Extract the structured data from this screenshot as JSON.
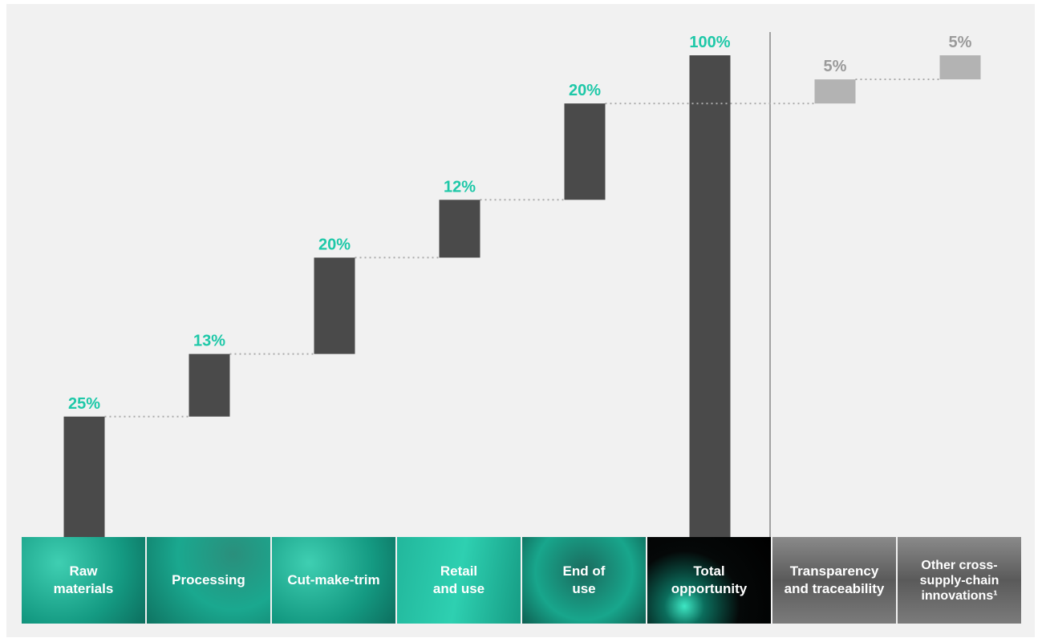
{
  "chart_data": {
    "type": "waterfall",
    "categories": [
      "Raw materials",
      "Processing",
      "Cut-make-trim",
      "Retail and use",
      "End of use",
      "Total opportunity",
      "Transparency and traceability",
      "Other cross-supply-chain innovations¹"
    ],
    "values": [
      25,
      13,
      20,
      12,
      20,
      100,
      5,
      5
    ],
    "value_labels": [
      "25%",
      "13%",
      "20%",
      "12%",
      "20%",
      "100%",
      "5%",
      "5%"
    ],
    "measure": [
      "relative",
      "relative",
      "relative",
      "relative",
      "relative",
      "total",
      "relative",
      "relative"
    ],
    "colors": [
      "#4a4a4a",
      "#4a4a4a",
      "#4a4a4a",
      "#4a4a4a",
      "#4a4a4a",
      "#4a4a4a",
      "#b3b3b3",
      "#b3b3b3"
    ],
    "label_colors": [
      "#1ec8a8",
      "#1ec8a8",
      "#1ec8a8",
      "#1ec8a8",
      "#1ec8a8",
      "#1ec8a8",
      "#9a9a9a",
      "#9a9a9a"
    ]
  }
}
